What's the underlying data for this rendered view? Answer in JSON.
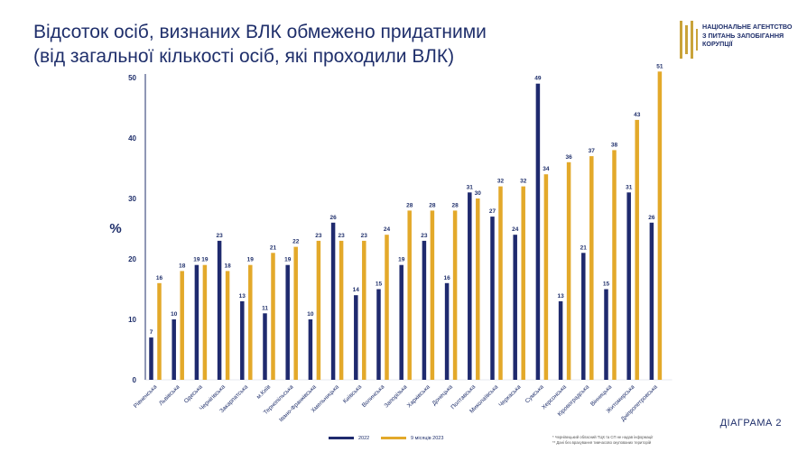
{
  "title": {
    "line1": "Відсоток осіб, визнаних ВЛК обмежено придатними",
    "line2": "(від загальної кількості осіб, які проходили ВЛК)"
  },
  "logo": {
    "line1": "НАЦІОНАЛЬНЕ АГЕНТСТВО",
    "line2": "З ПИТАНЬ ЗАПОБІГАННЯ",
    "line3": "КОРУПЦІЇ",
    "color": "#c9a33a"
  },
  "diagram_label": "ДІАГРАМА 2",
  "footnotes": {
    "line1": "* Чернівецький обласний ТЦК та СП не надав інформації",
    "line2": "** Дані без врахування тимчасово окупованих територій"
  },
  "colors": {
    "series_2022": "#1f2a6e",
    "series_2023": "#e3a92a",
    "text": "#1f2f6b"
  },
  "chart_data": {
    "type": "bar",
    "ylabel": "%",
    "ylim": [
      0,
      50
    ],
    "yticks": [
      0,
      10,
      20,
      30,
      40,
      50
    ],
    "grid": false,
    "legend_position": "bottom",
    "categories": [
      "Рівненська",
      "Львівська",
      "Одеська",
      "Чернігівська",
      "Закарпатська",
      "м.Київ",
      "Тернопільська",
      "Івано-Франківська",
      "Хмельницька",
      "Київська",
      "Волинська",
      "Запорізька",
      "Харківська",
      "Донецька",
      "Полтавська",
      "Миколаївська",
      "Черкаська",
      "Сумська",
      "Херсонська",
      "Кіровоградська",
      "Вінницька",
      "Житомирська",
      "Дніпропетровська"
    ],
    "series": [
      {
        "name": "2022",
        "values": [
          7,
          10,
          19,
          23,
          13,
          11,
          19,
          10,
          26,
          14,
          15,
          19,
          23,
          16,
          31,
          27,
          24,
          49,
          13,
          21,
          15,
          31,
          26
        ],
        "color": "#1f2a6e"
      },
      {
        "name": "9 місяців 2023",
        "values": [
          16,
          18,
          19,
          18,
          19,
          21,
          22,
          23,
          23,
          23,
          24,
          28,
          28,
          28,
          30,
          32,
          32,
          34,
          36,
          37,
          38,
          43,
          51
        ],
        "color": "#e3a92a"
      }
    ]
  }
}
